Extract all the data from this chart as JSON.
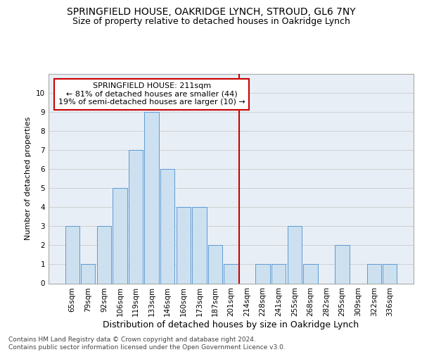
{
  "title": "SPRINGFIELD HOUSE, OAKRIDGE LYNCH, STROUD, GL6 7NY",
  "subtitle": "Size of property relative to detached houses in Oakridge Lynch",
  "xlabel": "Distribution of detached houses by size in Oakridge Lynch",
  "ylabel": "Number of detached properties",
  "categories": [
    "65sqm",
    "79sqm",
    "92sqm",
    "106sqm",
    "119sqm",
    "133sqm",
    "146sqm",
    "160sqm",
    "173sqm",
    "187sqm",
    "201sqm",
    "214sqm",
    "228sqm",
    "241sqm",
    "255sqm",
    "268sqm",
    "282sqm",
    "295sqm",
    "309sqm",
    "322sqm",
    "336sqm"
  ],
  "values": [
    3,
    1,
    3,
    5,
    7,
    9,
    6,
    4,
    4,
    2,
    1,
    0,
    1,
    1,
    3,
    1,
    0,
    2,
    0,
    1,
    1
  ],
  "bar_color": "#cce0f0",
  "bar_edge_color": "#5b9bd5",
  "reference_line_x": 10.5,
  "reference_line_color": "#cc0000",
  "annotation_text": "SPRINGFIELD HOUSE: 211sqm\n← 81% of detached houses are smaller (44)\n19% of semi-detached houses are larger (10) →",
  "annotation_box_color": "#cc0000",
  "ylim": [
    0,
    11
  ],
  "yticks": [
    0,
    1,
    2,
    3,
    4,
    5,
    6,
    7,
    8,
    9,
    10,
    11
  ],
  "grid_color": "#cccccc",
  "background_color": "#e8eef5",
  "footer": "Contains HM Land Registry data © Crown copyright and database right 2024.\nContains public sector information licensed under the Open Government Licence v3.0.",
  "title_fontsize": 10,
  "subtitle_fontsize": 9,
  "xlabel_fontsize": 9,
  "ylabel_fontsize": 8,
  "tick_fontsize": 7.5,
  "annotation_fontsize": 8,
  "footer_fontsize": 6.5
}
